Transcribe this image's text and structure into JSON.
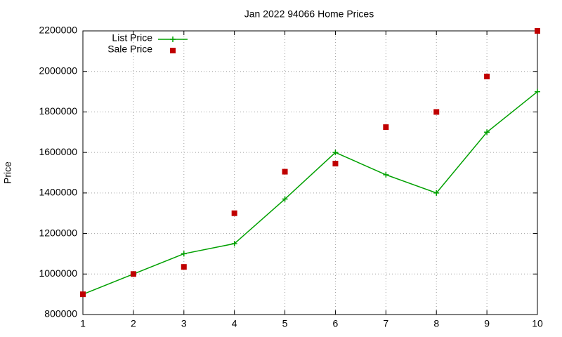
{
  "chart_data": {
    "type": "line",
    "title": "Jan 2022 94066 Home Prices",
    "y_label": "Price",
    "x": [
      1,
      2,
      3,
      4,
      5,
      6,
      7,
      8,
      9,
      10
    ],
    "series": [
      {
        "name": "List Price",
        "color": "#00a000",
        "style": "line",
        "values": [
          900000,
          1000000,
          1100000,
          1150000,
          1370000,
          1600000,
          1490000,
          1400000,
          1700000,
          1900000
        ]
      },
      {
        "name": "Sale Price",
        "color": "#c00000",
        "style": "points",
        "values": [
          900000,
          1000000,
          1035000,
          1300000,
          1505000,
          1545000,
          1725000,
          1800000,
          1975000,
          2200000
        ]
      }
    ],
    "xlim": [
      1,
      10
    ],
    "xticks": [
      1,
      2,
      3,
      4,
      5,
      6,
      7,
      8,
      9,
      10
    ],
    "ylim": [
      800000,
      2200000
    ],
    "yticks": [
      800000,
      1000000,
      1200000,
      1400000,
      1600000,
      1800000,
      2000000,
      2200000
    ],
    "grid": true,
    "legend": "top-left"
  }
}
